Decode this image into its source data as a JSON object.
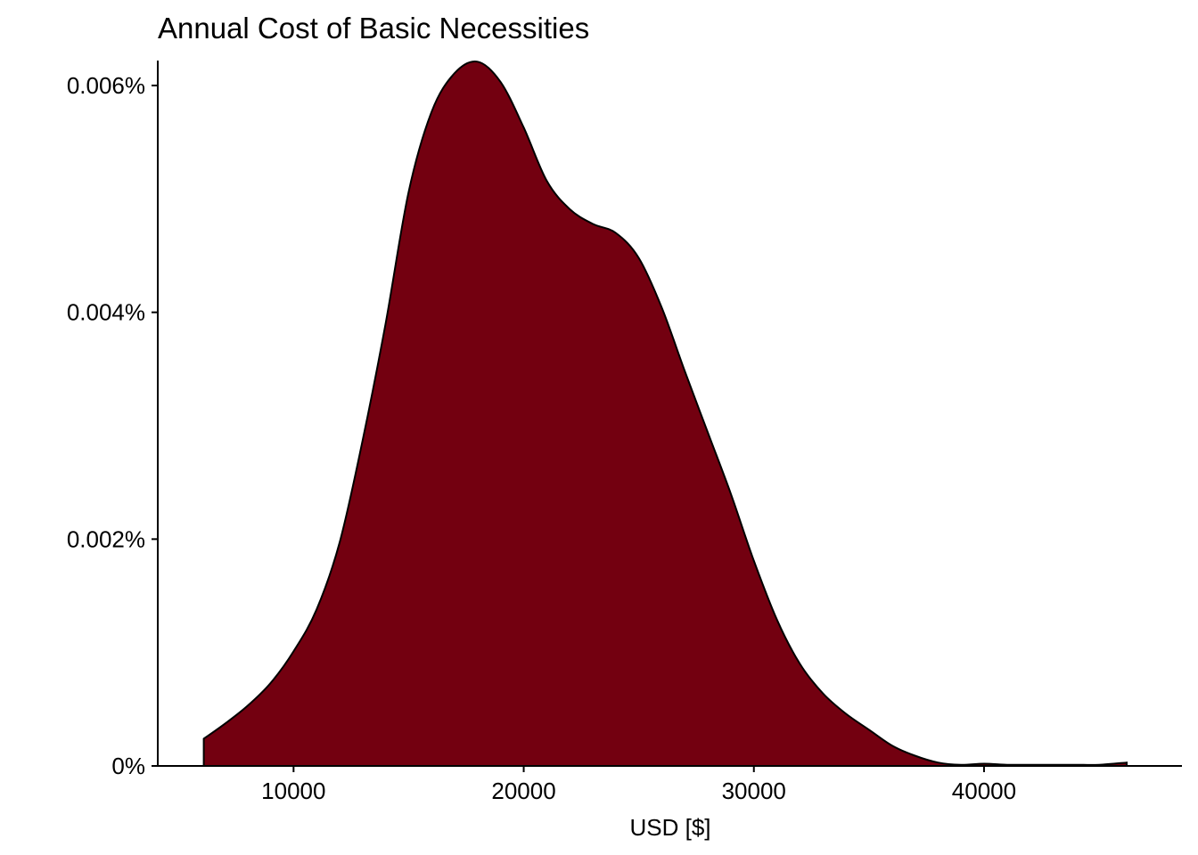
{
  "chart_data": {
    "type": "area",
    "title": "Annual Cost of Basic Necessities",
    "xlabel": "USD [$]",
    "ylabel": "",
    "x_ticks": [
      10000,
      20000,
      30000,
      40000
    ],
    "y_ticks": [
      0,
      2e-05,
      4e-05,
      6e-05
    ],
    "y_tick_labels": [
      "0%",
      "0.002%",
      "0.004%",
      "0.006%"
    ],
    "xlim": [
      4100,
      48600
    ],
    "ylim": [
      0,
      6.22e-05
    ],
    "grid": false,
    "legend": "none",
    "fill_color": "#730010",
    "stroke_color": "#000000",
    "series": [
      {
        "x": [
          6100,
          7000,
          8000,
          9000,
          10000,
          11000,
          12000,
          13000,
          14000,
          15000,
          16000,
          17000,
          18000,
          19000,
          20000,
          21000,
          22000,
          23000,
          24000,
          25000,
          26000,
          27000,
          28000,
          29000,
          30000,
          31000,
          32000,
          33000,
          34000,
          35000,
          36000,
          37000,
          38000,
          39000,
          40000,
          41000,
          42000,
          43000,
          44000,
          45000,
          46200
        ],
        "y": [
          2.4e-06,
          3.7e-06,
          5.3e-06,
          7.3e-06,
          1.01e-05,
          1.38e-05,
          1.97e-05,
          2.87e-05,
          3.9e-05,
          5.06e-05,
          5.77e-05,
          6.11e-05,
          6.21e-05,
          6.03e-05,
          5.63e-05,
          5.16e-05,
          4.91e-05,
          4.78e-05,
          4.7e-05,
          4.48e-05,
          4.04e-05,
          3.48e-05,
          2.94e-05,
          2.4e-05,
          1.81e-05,
          1.29e-05,
          9e-06,
          6.4e-06,
          4.6e-06,
          3.2e-06,
          1.8e-06,
          9e-07,
          3e-07,
          1e-07,
          2e-07,
          1e-07,
          1e-07,
          1e-07,
          1e-07,
          1e-07,
          3e-07
        ]
      }
    ]
  }
}
